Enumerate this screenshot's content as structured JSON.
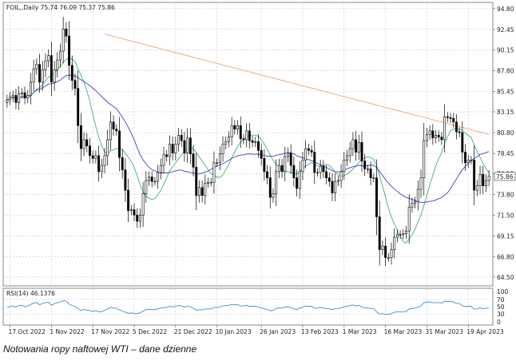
{
  "caption": "Notowania ropy naftowej WTI – dane dzienne",
  "colors": {
    "ma_long": "#f0a070",
    "ma_mid": "#4040c0",
    "ma_short": "#40b080",
    "rsi": "#3a8fd8",
    "candle": "#000000",
    "grid": "#c8c8c8"
  },
  "chart_data": [
    {
      "type": "candlestick",
      "header": "FOIL,,Daily  75.74 76.09 75.37 75.86",
      "symbol": "FOIL",
      "timeframe": "Daily",
      "ohlc_last": {
        "open": 75.74,
        "high": 76.09,
        "low": 75.37,
        "close": 75.86
      },
      "current_price_label": "75.86",
      "y_ticks": [
        "94.80",
        "92.45",
        "90.15",
        "87.80",
        "85.45",
        "83.15",
        "80.80",
        "78.45",
        "76.15",
        "73.80",
        "71.50",
        "69.15",
        "66.80",
        "64.50"
      ],
      "x_ticks": [
        "17 Oct 2022",
        "1 Nov 2022",
        "17 Nov 2022",
        "5 Dec 2022",
        "21 Dec 2022",
        "10 Jan 2023",
        "26 Jan 2023",
        "13 Feb 2023",
        "1 Mar 2023",
        "16 Mar 2023",
        "31 Mar 2023",
        "19 Apr 2023"
      ],
      "ylim": [
        63.5,
        95.5
      ],
      "grid": true,
      "closes": [
        84.5,
        84.8,
        85.0,
        84.2,
        85.2,
        85.3,
        84.7,
        85.0,
        86.5,
        88.0,
        88.5,
        86.5,
        87.9,
        88.9,
        89.5,
        86.5,
        87.9,
        89.0,
        90.0,
        92.5,
        91.7,
        88.4,
        86.7,
        85.8,
        81.6,
        79.0,
        80.0,
        79.3,
        78.2,
        77.9,
        78.2,
        76.4,
        77.1,
        78.2,
        80.0,
        82.0,
        81.2,
        81.0,
        78.0,
        76.6,
        74.3,
        72.0,
        72.1,
        71.5,
        70.8,
        71.5,
        73.9,
        75.4,
        75.8,
        75.3,
        75.3,
        76.3,
        77.1,
        78.3,
        78.1,
        79.5,
        78.5,
        79.5,
        80.5,
        79.9,
        78.5,
        80.2,
        78.4,
        76.9,
        73.7,
        74.6,
        73.7,
        75.1,
        75.2,
        75.2,
        77.4,
        77.4,
        78.4,
        79.5,
        79.8,
        80.3,
        81.6,
        81.2,
        81.6,
        80.1,
        80.0,
        81.0,
        79.9,
        79.7,
        79.8,
        78.8,
        77.9,
        76.4,
        75.7,
        73.5,
        73.9,
        76.4,
        77.1,
        76.4,
        78.1,
        78.5,
        77.1,
        75.7,
        74.5,
        76.4,
        77.7,
        79.0,
        78.8,
        78.6,
        76.3,
        76.3,
        77.0,
        76.4,
        75.7,
        75.3,
        74.0,
        75.3,
        75.4,
        76.4,
        77.7,
        78.2,
        79.0,
        80.0,
        78.6,
        79.7,
        77.6,
        76.7,
        76.7,
        75.7,
        75.7,
        71.3,
        67.6,
        68.0,
        66.7,
        66.7,
        67.6,
        69.0,
        69.3,
        69.3,
        69.4,
        69.7,
        72.4,
        72.8,
        73.0,
        74.4,
        75.7,
        79.9,
        80.6,
        81.0,
        80.2,
        80.5,
        80.3,
        80.0,
        82.6,
        82.5,
        82.4,
        82.0,
        80.9,
        80.8,
        78.6,
        77.4,
        77.7,
        77.7,
        74.3,
        74.8,
        76.1,
        74.8,
        75.4,
        75.9
      ]
    },
    {
      "type": "line",
      "header": "RSI(14) 46.1376",
      "name": "RSI(14)",
      "value_last": 46.1376,
      "y_ticks": [
        "100",
        "70",
        "50",
        "30",
        "0"
      ],
      "ylim": [
        0,
        100
      ],
      "values": [
        48,
        50,
        52,
        49,
        53,
        54,
        50,
        52,
        56,
        60,
        61,
        55,
        59,
        61,
        62,
        54,
        58,
        61,
        63,
        67,
        65,
        57,
        53,
        51,
        44,
        40,
        42,
        41,
        39,
        38,
        39,
        36,
        37,
        40,
        44,
        48,
        46,
        46,
        41,
        38,
        35,
        32,
        33,
        32,
        31,
        33,
        38,
        42,
        43,
        42,
        42,
        44,
        46,
        48,
        48,
        51,
        49,
        51,
        53,
        52,
        49,
        52,
        49,
        46,
        40,
        42,
        41,
        44,
        44,
        44,
        48,
        48,
        50,
        52,
        53,
        54,
        56,
        55,
        56,
        52,
        52,
        54,
        51,
        51,
        51,
        49,
        47,
        44,
        43,
        39,
        40,
        45,
        47,
        46,
        49,
        50,
        47,
        44,
        42,
        46,
        49,
        52,
        51,
        51,
        46,
        46,
        48,
        46,
        45,
        44,
        42,
        45,
        45,
        47,
        50,
        51,
        53,
        55,
        52,
        54,
        49,
        47,
        47,
        45,
        45,
        36,
        30,
        31,
        29,
        29,
        31,
        35,
        36,
        36,
        36,
        37,
        44,
        45,
        46,
        49,
        52,
        61,
        62,
        63,
        61,
        61,
        61,
        60,
        65,
        64,
        64,
        63,
        59,
        59,
        53,
        50,
        51,
        51,
        43,
        44,
        47,
        44,
        46,
        46
      ]
    }
  ]
}
